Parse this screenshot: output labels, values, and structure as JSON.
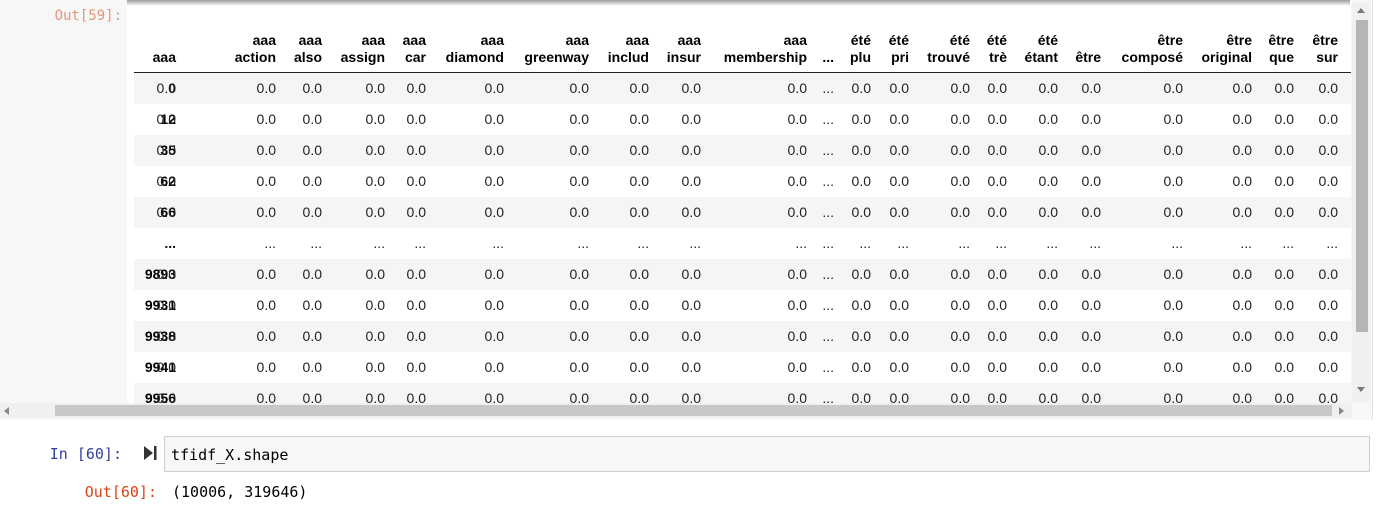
{
  "output_59": {
    "prompt": "Out[59]:",
    "columns": [
      "",
      "aaa",
      "aaa\naction",
      "aaa\nalso",
      "aaa\nassign",
      "aaa\ncar",
      "aaa\ndiamond",
      "aaa\ngreenway",
      "aaa\ninclud",
      "aaa\ninsur",
      "aaa\nmembership",
      "...",
      "été\nplu",
      "été\npri",
      "été\ntrouvé",
      "été\ntrè",
      "été\nétant",
      "être",
      "être\ncomposé",
      "être\noriginal",
      "être\nque",
      "être\nsur"
    ],
    "rows": [
      [
        "0",
        "0.0",
        "0.0",
        "0.0",
        "0.0",
        "0.0",
        "0.0",
        "0.0",
        "0.0",
        "0.0",
        "0.0",
        "...",
        "0.0",
        "0.0",
        "0.0",
        "0.0",
        "0.0",
        "0.0",
        "0.0",
        "0.0",
        "0.0",
        "0.0"
      ],
      [
        "12",
        "0.0",
        "0.0",
        "0.0",
        "0.0",
        "0.0",
        "0.0",
        "0.0",
        "0.0",
        "0.0",
        "0.0",
        "...",
        "0.0",
        "0.0",
        "0.0",
        "0.0",
        "0.0",
        "0.0",
        "0.0",
        "0.0",
        "0.0",
        "0.0"
      ],
      [
        "35",
        "0.0",
        "0.0",
        "0.0",
        "0.0",
        "0.0",
        "0.0",
        "0.0",
        "0.0",
        "0.0",
        "0.0",
        "...",
        "0.0",
        "0.0",
        "0.0",
        "0.0",
        "0.0",
        "0.0",
        "0.0",
        "0.0",
        "0.0",
        "0.0"
      ],
      [
        "62",
        "0.0",
        "0.0",
        "0.0",
        "0.0",
        "0.0",
        "0.0",
        "0.0",
        "0.0",
        "0.0",
        "0.0",
        "...",
        "0.0",
        "0.0",
        "0.0",
        "0.0",
        "0.0",
        "0.0",
        "0.0",
        "0.0",
        "0.0",
        "0.0"
      ],
      [
        "66",
        "0.0",
        "0.0",
        "0.0",
        "0.0",
        "0.0",
        "0.0",
        "0.0",
        "0.0",
        "0.0",
        "0.0",
        "...",
        "0.0",
        "0.0",
        "0.0",
        "0.0",
        "0.0",
        "0.0",
        "0.0",
        "0.0",
        "0.0",
        "0.0"
      ],
      [
        "...",
        "...",
        "...",
        "...",
        "...",
        "...",
        "...",
        "...",
        "...",
        "...",
        "...",
        "...",
        "...",
        "...",
        "...",
        "...",
        "...",
        "...",
        "...",
        "...",
        "...",
        "..."
      ],
      [
        "9893",
        "0.0",
        "0.0",
        "0.0",
        "0.0",
        "0.0",
        "0.0",
        "0.0",
        "0.0",
        "0.0",
        "0.0",
        "...",
        "0.0",
        "0.0",
        "0.0",
        "0.0",
        "0.0",
        "0.0",
        "0.0",
        "0.0",
        "0.0",
        "0.0"
      ],
      [
        "9931",
        "0.0",
        "0.0",
        "0.0",
        "0.0",
        "0.0",
        "0.0",
        "0.0",
        "0.0",
        "0.0",
        "0.0",
        "...",
        "0.0",
        "0.0",
        "0.0",
        "0.0",
        "0.0",
        "0.0",
        "0.0",
        "0.0",
        "0.0",
        "0.0"
      ],
      [
        "9938",
        "0.0",
        "0.0",
        "0.0",
        "0.0",
        "0.0",
        "0.0",
        "0.0",
        "0.0",
        "0.0",
        "0.0",
        "...",
        "0.0",
        "0.0",
        "0.0",
        "0.0",
        "0.0",
        "0.0",
        "0.0",
        "0.0",
        "0.0",
        "0.0"
      ],
      [
        "9941",
        "0.0",
        "0.0",
        "0.0",
        "0.0",
        "0.0",
        "0.0",
        "0.0",
        "0.0",
        "0.0",
        "0.0",
        "...",
        "0.0",
        "0.0",
        "0.0",
        "0.0",
        "0.0",
        "0.0",
        "0.0",
        "0.0",
        "0.0",
        "0.0"
      ],
      [
        "9956",
        "0.0",
        "0.0",
        "0.0",
        "0.0",
        "0.0",
        "0.0",
        "0.0",
        "0.0",
        "0.0",
        "0.0",
        "...",
        "0.0",
        "0.0",
        "0.0",
        "0.0",
        "0.0",
        "0.0",
        "0.0",
        "0.0",
        "0.0",
        "0.0"
      ]
    ]
  },
  "input_60": {
    "prompt": "In [60]:",
    "code": "tfidf_X.shape",
    "run_icon": "run-cell-icon"
  },
  "output_60": {
    "prompt": "Out[60]:",
    "text": "(10006, 319646)"
  },
  "colors": {
    "in_prompt": "#303f9f",
    "out_prompt": "#d84315",
    "stripe": "#f5f5f5"
  }
}
